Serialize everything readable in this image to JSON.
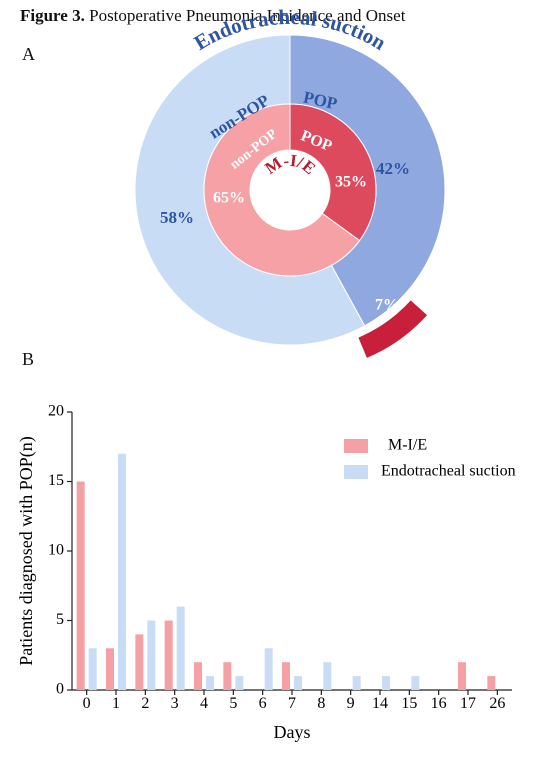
{
  "figure": {
    "label": "Figure 3.",
    "title": "Postoperative Pneumonia Incidence and Onset"
  },
  "panels": {
    "a": "A",
    "b": "B"
  },
  "chart_data": [
    {
      "type": "pie",
      "panel": "A",
      "center_label": "M-I/E",
      "outer_ring": {
        "name": "Endotracheal suction",
        "slices": [
          {
            "label": "POP",
            "value": 42,
            "value_label": "42%",
            "color": "#8FA8E0"
          },
          {
            "label": "non-POP",
            "value": 58,
            "value_label": "58%",
            "color": "#C8DCF6"
          }
        ]
      },
      "inner_ring": {
        "name": "M-I/E",
        "slices": [
          {
            "label": "POP",
            "value": 35,
            "value_label": "35%",
            "color": "#DD4A5D"
          },
          {
            "label": "non-POP",
            "value": 65,
            "value_label": "65%",
            "color": "#F6A1A6"
          }
        ]
      },
      "exploded_slice": {
        "value": 7,
        "value_label": "7%",
        "color": "#C8203A"
      },
      "label_colors": {
        "outer": "#2E55A2",
        "inner_text": "#ffffff",
        "center": "#B01E2F"
      }
    },
    {
      "type": "bar",
      "panel": "B",
      "xlabel": "Days",
      "ylabel": "Patients diagnosed with POP(n)",
      "ylim": [
        0,
        20
      ],
      "yticks": [
        0,
        5,
        10,
        15,
        20
      ],
      "categories": [
        "0",
        "1",
        "2",
        "3",
        "4",
        "5",
        "6",
        "7",
        "8",
        "9",
        "14",
        "15",
        "16",
        "17",
        "26"
      ],
      "series": [
        {
          "name": "M-I/E",
          "color": "#F4A0A4",
          "values": [
            15,
            3,
            4,
            5,
            2,
            2,
            0,
            2,
            0,
            0,
            0,
            0,
            0,
            2,
            1
          ]
        },
        {
          "name": "Endotracheal suction",
          "color": "#C8DCF6",
          "values": [
            3,
            17,
            5,
            6,
            1,
            1,
            3,
            1,
            2,
            1,
            1,
            1,
            0,
            0,
            0
          ]
        }
      ],
      "legend_position": "top-right",
      "grid": false
    }
  ]
}
